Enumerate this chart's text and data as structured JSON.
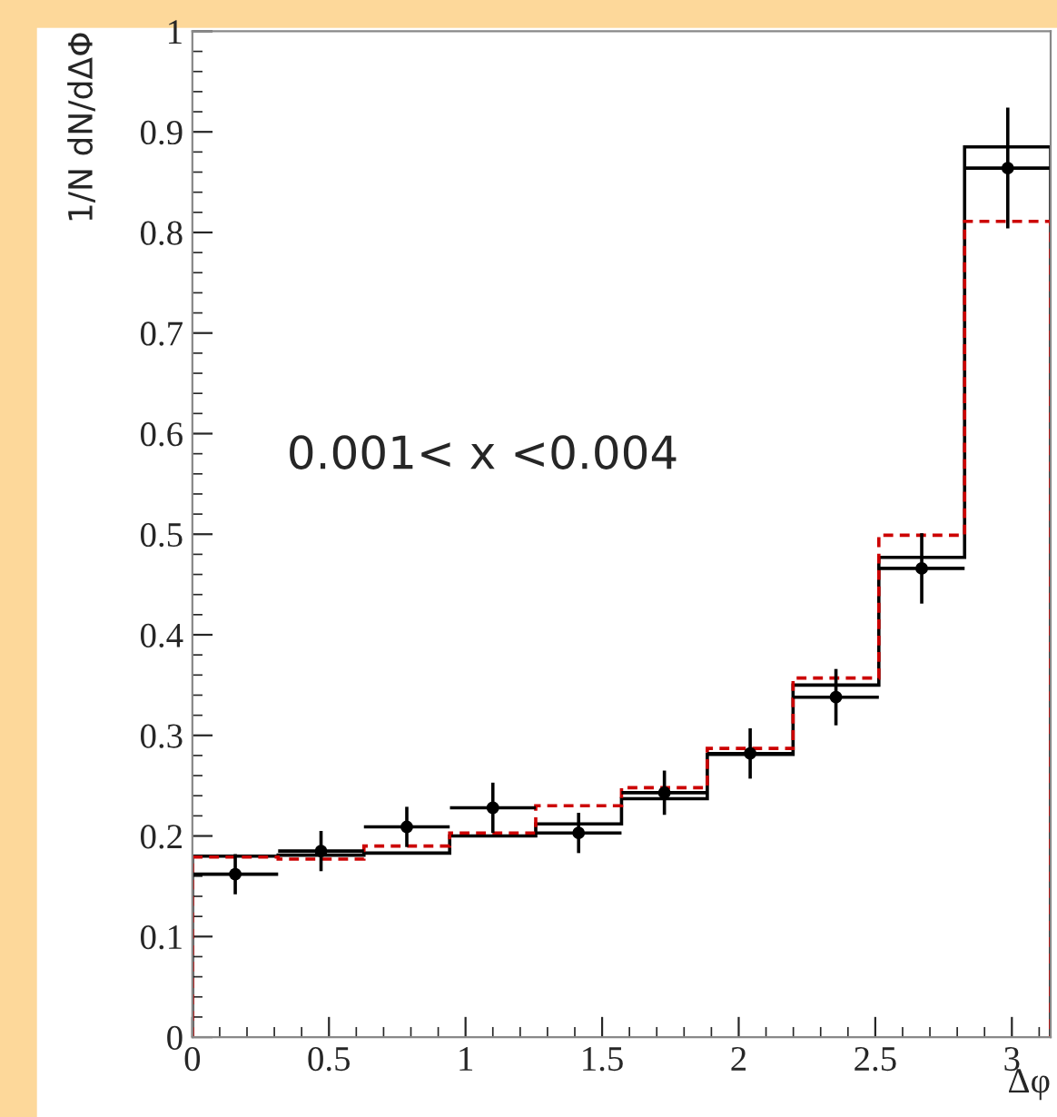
{
  "chart_data": {
    "type": "histogram",
    "ylabel": "1/N dN/dΔΦ",
    "xlabel": "Δφ",
    "annotations": [
      "0.001< x <0.004"
    ],
    "bins": [
      0,
      0.314,
      0.628,
      0.942,
      1.257,
      1.571,
      1.885,
      2.199,
      2.513,
      2.827,
      3.142
    ],
    "series": [
      {
        "color": "#000000",
        "line_style": "solid",
        "values": [
          0.18,
          0.181,
          0.183,
          0.2,
          0.212,
          0.237,
          0.281,
          0.35,
          0.477,
          0.885
        ]
      },
      {
        "color": "#cc0000",
        "line_style": "dashed",
        "values": [
          0.179,
          0.177,
          0.19,
          0.203,
          0.23,
          0.248,
          0.287,
          0.357,
          0.499,
          0.811
        ]
      },
      {
        "type": "scatter",
        "color": "#000000",
        "marker": "circle",
        "x": [
          0.157,
          0.471,
          0.785,
          1.1,
          1.414,
          1.728,
          2.042,
          2.356,
          2.67,
          2.985
        ],
        "values": [
          0.162,
          0.185,
          0.209,
          0.228,
          0.203,
          0.243,
          0.282,
          0.338,
          0.466,
          0.864
        ],
        "errors": [
          0.02,
          0.02,
          0.02,
          0.025,
          0.02,
          0.022,
          0.025,
          0.028,
          0.035,
          0.06
        ],
        "xerrors": [
          0.157,
          0.157,
          0.157,
          0.157,
          0.157,
          0.157,
          0.157,
          0.157,
          0.157,
          0.157
        ]
      }
    ],
    "xlim": [
      0,
      3.142
    ],
    "ylim": [
      0,
      1
    ],
    "xticks": [
      0,
      0.5,
      1,
      1.5,
      2,
      2.5,
      3
    ],
    "yticks": [
      0,
      0.1,
      0.2,
      0.3,
      0.4,
      0.5,
      0.6,
      0.7,
      0.8,
      0.9,
      1
    ],
    "grid": false,
    "legend": false
  }
}
